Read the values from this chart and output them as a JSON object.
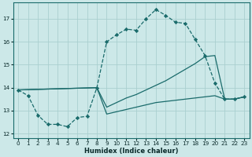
{
  "xlabel": "Humidex (Indice chaleur)",
  "bg_color": "#cce8e8",
  "line_color": "#1a6b6b",
  "grid_color": "#aacfcf",
  "xlim": [
    -0.5,
    23.5
  ],
  "ylim": [
    11.8,
    17.7
  ],
  "yticks": [
    12,
    13,
    14,
    15,
    16,
    17
  ],
  "xticks": [
    0,
    1,
    2,
    3,
    4,
    5,
    6,
    7,
    8,
    9,
    10,
    11,
    12,
    13,
    14,
    15,
    16,
    17,
    18,
    19,
    20,
    21,
    22,
    23
  ],
  "line1_x": [
    0,
    1,
    2,
    3,
    4,
    5,
    6,
    7,
    8,
    9,
    10,
    11,
    12,
    13,
    14,
    15,
    16,
    17,
    18,
    19,
    20,
    21,
    22,
    23
  ],
  "line1_y": [
    13.9,
    13.65,
    12.8,
    12.4,
    12.4,
    12.3,
    12.7,
    12.75,
    14.0,
    16.0,
    16.3,
    16.55,
    16.5,
    17.0,
    17.4,
    17.15,
    16.85,
    16.8,
    16.1,
    15.4,
    14.2,
    13.5,
    13.5,
    13.6
  ],
  "line2_x": [
    0,
    8,
    9,
    10,
    11,
    12,
    13,
    14,
    15,
    16,
    17,
    18,
    19,
    20,
    21,
    22,
    23
  ],
  "line2_y": [
    13.9,
    14.0,
    13.15,
    13.35,
    13.55,
    13.7,
    13.9,
    14.1,
    14.3,
    14.55,
    14.8,
    15.05,
    15.35,
    15.4,
    13.5,
    13.5,
    13.6
  ],
  "line3_x": [
    0,
    8,
    9,
    10,
    11,
    12,
    13,
    14,
    15,
    16,
    17,
    18,
    19,
    20,
    21,
    22,
    23
  ],
  "line3_y": [
    13.9,
    14.0,
    12.85,
    12.95,
    13.05,
    13.15,
    13.25,
    13.35,
    13.4,
    13.45,
    13.5,
    13.55,
    13.6,
    13.65,
    13.5,
    13.5,
    13.6
  ]
}
